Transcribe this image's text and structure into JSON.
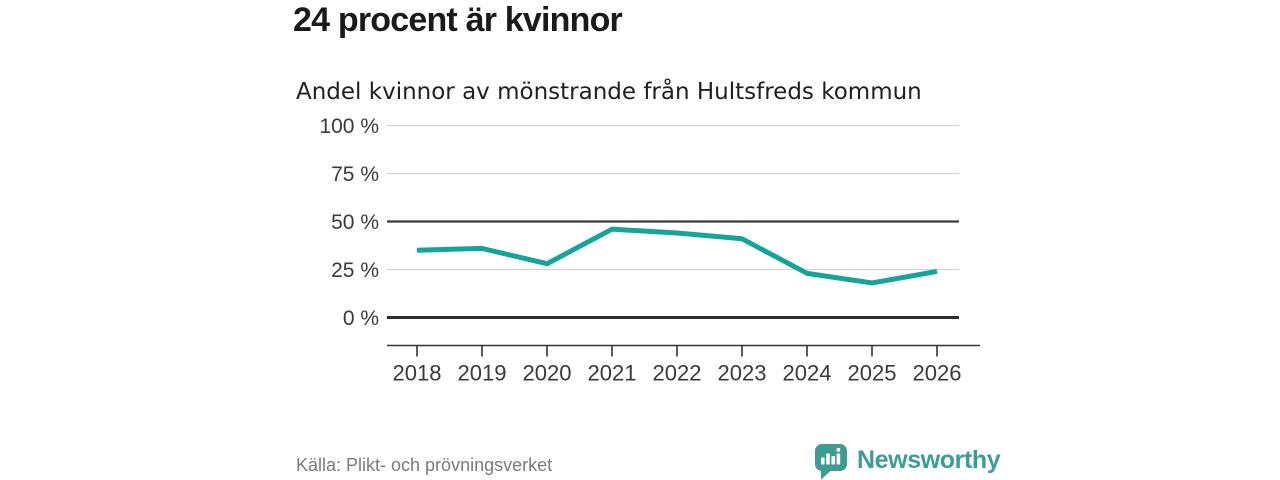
{
  "header": {
    "title": "24 procent är kvinnor",
    "subtitle": "Andel kvinnor av mönstrande från Hultsfreds kommun"
  },
  "chart_data": {
    "type": "line",
    "title": "24 procent är kvinnor",
    "subtitle": "Andel kvinnor av mönstrande från Hultsfreds kommun",
    "x": [
      "2018",
      "2019",
      "2020",
      "2021",
      "2022",
      "2023",
      "2024",
      "2025",
      "2026"
    ],
    "series": [
      {
        "name": "Andel kvinnor av mönstrande",
        "values": [
          35,
          36,
          28,
          46,
          44,
          41,
          23,
          18,
          24
        ],
        "color": "#15a49a"
      }
    ],
    "ylim": [
      0,
      100
    ],
    "yticks": [
      0,
      25,
      50,
      75,
      100
    ],
    "ytick_labels": [
      "0 %",
      "25 %",
      "50 %",
      "75 %",
      "100 %"
    ],
    "grid": true,
    "emphasized_gridlines": [
      0,
      50
    ],
    "legend": "none",
    "xlabel": "",
    "ylabel": ""
  },
  "footer": {
    "source": "Källa: Plikt- och prövningsverket",
    "brand_name": "Newsworthy"
  },
  "colors": {
    "line": "#15a49a",
    "brand": "#3f9c95",
    "grid_light": "#d4d4d4",
    "grid_zero": "#2d2d2d",
    "grid_emphasis": "#3a3a3a",
    "axis": "#333333",
    "title_text": "#1a1a1a",
    "tick_text": "#3a3a3a",
    "source_text": "#7b7b7b",
    "background": "#ffffff"
  }
}
